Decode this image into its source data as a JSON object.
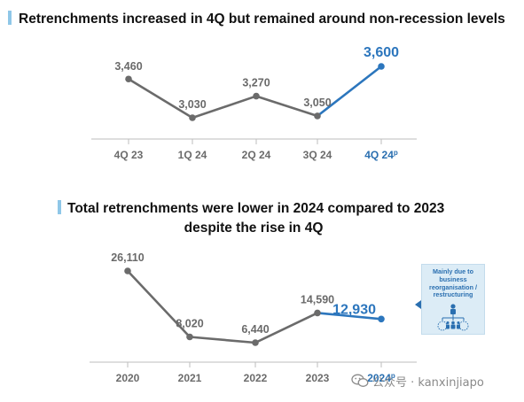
{
  "chart_data": [
    {
      "type": "line",
      "title": "Retrenchments increased in 4Q but remained around non-recession levels",
      "categories": [
        "4Q 23",
        "1Q 24",
        "2Q 24",
        "3Q 24",
        "4Q 24"
      ],
      "category_superscripts": [
        "",
        "",
        "",
        "",
        "p"
      ],
      "values": [
        3460,
        3030,
        3270,
        3050,
        3600
      ],
      "value_labels": [
        "3,460",
        "3,030",
        "3,270",
        "3,050",
        "3,600"
      ],
      "highlight_index": 4,
      "colors": {
        "base": "#6b6b6b",
        "highlight": "#2c76bd"
      }
    },
    {
      "type": "line",
      "title": "Total retrenchments were lower in 2024 compared to 2023 despite the rise in 4Q",
      "title_lines": [
        "Total retrenchments were lower in 2024 compared to 2023",
        "despite the rise in 4Q"
      ],
      "categories": [
        "2020",
        "2021",
        "2022",
        "2023",
        "2024"
      ],
      "category_superscripts": [
        "",
        "",
        "",
        "",
        "p"
      ],
      "values": [
        26110,
        8020,
        6440,
        14590,
        12930
      ],
      "value_labels": [
        "26,110",
        "8,020",
        "6,440",
        "14,590",
        "12,930"
      ],
      "highlight_index": 4,
      "colors": {
        "base": "#6b6b6b",
        "highlight": "#2c76bd"
      },
      "annotation": "Mainly due to business reorganisation / restructuring"
    }
  ],
  "watermark": {
    "text": "公众号 · kanxinjiapo",
    "icon": "wechat-icon"
  },
  "colors": {
    "title_accent": "#8fc7e8",
    "callout_bg": "#dcecf6"
  }
}
